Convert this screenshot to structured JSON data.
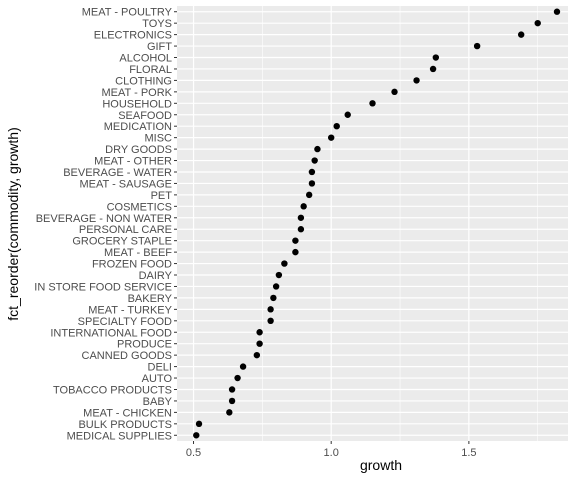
{
  "chart_data": {
    "type": "scatter",
    "title": "",
    "xlabel": "growth",
    "ylabel": "fct_reorder(commodity, growth)",
    "xlim": [
      0.44,
      1.86
    ],
    "x_ticks": [
      "0.5",
      "1.0",
      "1.5"
    ],
    "x_tick_values": [
      0.5,
      1.0,
      1.5
    ],
    "grid": true,
    "panel_color": "#ebebeb",
    "grid_color": "#ffffff",
    "point_color": "#000000",
    "categories": [
      "MEAT - POULTRY",
      "TOYS",
      "ELECTRONICS",
      "GIFT",
      "ALCOHOL",
      "FLORAL",
      "CLOTHING",
      "MEAT - PORK",
      "HOUSEHOLD",
      "SEAFOOD",
      "MEDICATION",
      "MISC",
      "DRY GOODS",
      "MEAT - OTHER",
      "BEVERAGE - WATER",
      "MEAT - SAUSAGE",
      "PET",
      "COSMETICS",
      "BEVERAGE - NON WATER",
      "PERSONAL CARE",
      "GROCERY STAPLE",
      "MEAT - BEEF",
      "FROZEN FOOD",
      "DAIRY",
      "IN STORE FOOD SERVICE",
      "BAKERY",
      "MEAT - TURKEY",
      "SPECIALTY FOOD",
      "INTERNATIONAL FOOD",
      "PRODUCE",
      "CANNED GOODS",
      "DELI",
      "AUTO",
      "TOBACCO PRODUCTS",
      "BABY",
      "MEAT - CHICKEN",
      "BULK PRODUCTS",
      "MEDICAL SUPPLIES"
    ],
    "values": [
      1.82,
      1.75,
      1.69,
      1.53,
      1.38,
      1.37,
      1.31,
      1.23,
      1.15,
      1.06,
      1.02,
      1.0,
      0.95,
      0.94,
      0.93,
      0.93,
      0.92,
      0.9,
      0.89,
      0.89,
      0.87,
      0.87,
      0.83,
      0.81,
      0.8,
      0.79,
      0.78,
      0.78,
      0.74,
      0.74,
      0.73,
      0.68,
      0.66,
      0.64,
      0.64,
      0.63,
      0.52,
      0.51
    ]
  }
}
